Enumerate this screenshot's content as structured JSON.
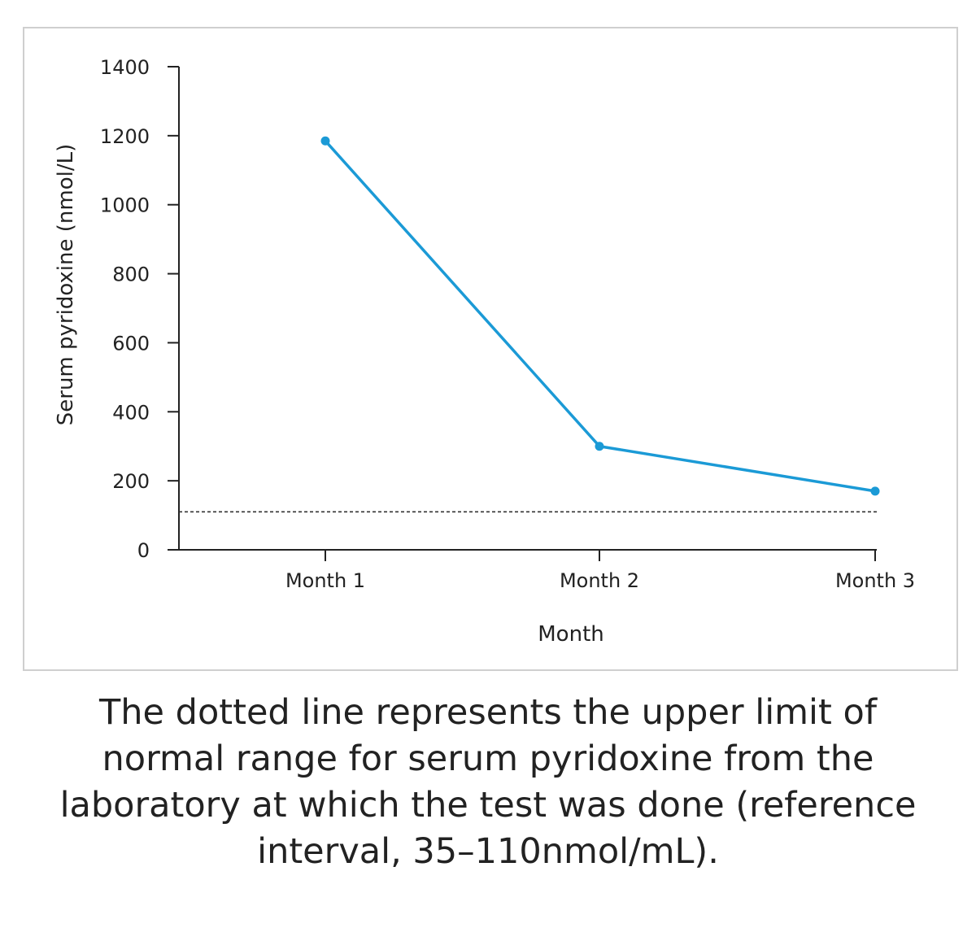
{
  "chart_data": {
    "type": "line",
    "title": "",
    "xlabel": "Month",
    "ylabel": "Serum pyridoxine (nmol/L)",
    "categories": [
      "Month 1",
      "Month 2",
      "Month 3"
    ],
    "series": [
      {
        "values": [
          1185,
          300,
          170
        ]
      }
    ],
    "reference_line": {
      "value": 110,
      "style": "dotted"
    },
    "ylim": [
      0,
      1400
    ],
    "yticks": [
      0,
      200,
      400,
      600,
      800,
      1000,
      1200,
      1400
    ],
    "grid": false,
    "line_color": "#1b9ad6",
    "axis_color": "#222222"
  },
  "caption": "The dotted line represents the upper limit of normal range for serum pyridoxine from the laboratory at which the test was done (reference interval, 35–110nmol/mL)."
}
